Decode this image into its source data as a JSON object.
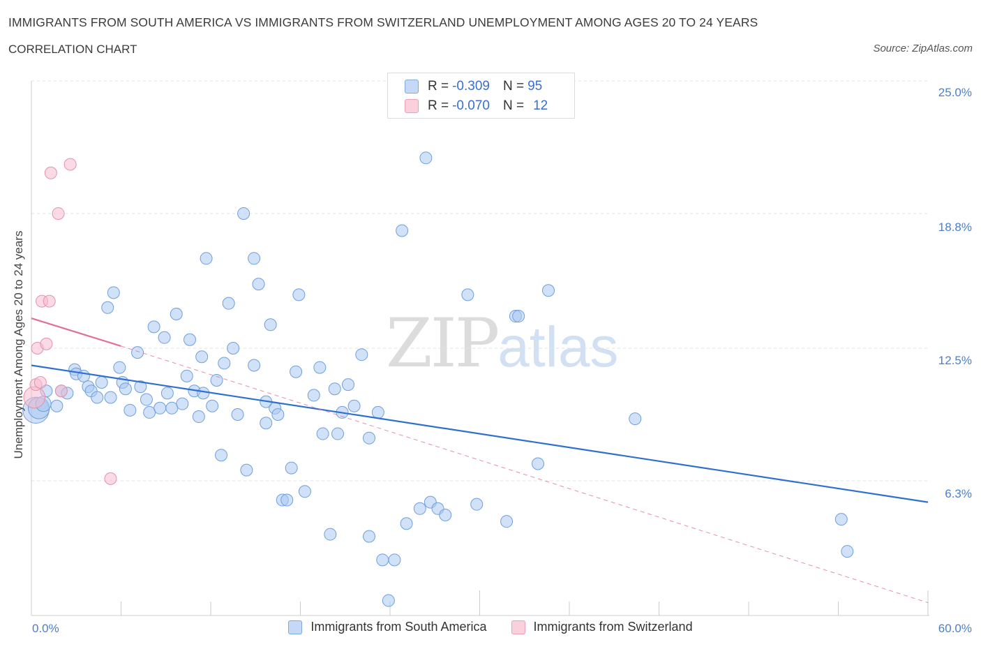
{
  "chart_data": {
    "type": "scatter",
    "title": "IMMIGRANTS FROM SOUTH AMERICA VS IMMIGRANTS FROM SWITZERLAND UNEMPLOYMENT AMONG AGES 20 TO 24 YEARS",
    "subtitle": "CORRELATION CHART",
    "source": "Source: ZipAtlas.com",
    "ylabel": "Unemployment Among Ages 20 to 24 years",
    "xlim": [
      0,
      60
    ],
    "ylim": [
      0,
      25
    ],
    "x_tick_labels": [
      "0.0%",
      "60.0%"
    ],
    "y_ticks": [
      {
        "value": 25.0,
        "label": "25.0%"
      },
      {
        "value": 18.8,
        "label": "18.8%"
      },
      {
        "value": 12.5,
        "label": "12.5%"
      },
      {
        "value": 6.3,
        "label": "6.3%"
      }
    ],
    "legend_stats": [
      {
        "r_label": "R = ",
        "r_value": "-0.309",
        "n_label": "N = ",
        "n_value": "95"
      },
      {
        "r_label": "R = ",
        "r_value": "-0.070",
        "n_label": "N = ",
        "n_value": "12"
      }
    ],
    "watermark": {
      "zip": "ZIP",
      "atlas": "atlas"
    },
    "series": [
      {
        "name": "Immigrants from South America",
        "color": "#a9c8f2",
        "stroke": "#6f9fdc",
        "trend_color": "#2e6fd1",
        "trend": {
          "x0": 0,
          "y0": 11.7,
          "x1": 60,
          "y1": 5.3
        },
        "points": [
          [
            0.3,
            9.6,
            2.2
          ],
          [
            0.5,
            9.7,
            1.8
          ],
          [
            0.8,
            9.9,
            1.3
          ],
          [
            1.0,
            10.5,
            1.0
          ],
          [
            1.7,
            9.8,
            1.0
          ],
          [
            2.0,
            10.5,
            1.0
          ],
          [
            2.4,
            10.4,
            1.0
          ],
          [
            2.9,
            11.5,
            1.0
          ],
          [
            3.0,
            11.3,
            1.0
          ],
          [
            3.5,
            11.2,
            1.0
          ],
          [
            3.8,
            10.7,
            1.0
          ],
          [
            4.0,
            10.5,
            1.0
          ],
          [
            4.4,
            10.2,
            1.0
          ],
          [
            4.7,
            10.9,
            1.0
          ],
          [
            5.1,
            14.4,
            1.0
          ],
          [
            5.3,
            10.2,
            1.0
          ],
          [
            5.5,
            15.1,
            1.0
          ],
          [
            5.9,
            11.6,
            1.0
          ],
          [
            6.1,
            10.9,
            1.0
          ],
          [
            6.3,
            10.6,
            1.0
          ],
          [
            6.6,
            9.6,
            1.0
          ],
          [
            7.1,
            12.3,
            1.0
          ],
          [
            7.3,
            10.7,
            1.0
          ],
          [
            7.7,
            10.1,
            1.0
          ],
          [
            7.9,
            9.5,
            1.0
          ],
          [
            8.2,
            13.5,
            1.0
          ],
          [
            8.6,
            9.7,
            1.0
          ],
          [
            8.9,
            13.0,
            1.0
          ],
          [
            9.1,
            10.4,
            1.0
          ],
          [
            9.4,
            9.7,
            1.0
          ],
          [
            9.7,
            14.1,
            1.0
          ],
          [
            10.1,
            9.9,
            1.0
          ],
          [
            10.4,
            11.2,
            1.0
          ],
          [
            10.6,
            12.9,
            1.0
          ],
          [
            10.9,
            10.5,
            1.0
          ],
          [
            11.2,
            9.3,
            1.0
          ],
          [
            11.5,
            10.4,
            1.0
          ],
          [
            11.7,
            16.7,
            1.0
          ],
          [
            12.1,
            9.8,
            1.0
          ],
          [
            12.4,
            11.0,
            1.0
          ],
          [
            12.7,
            7.5,
            1.0
          ],
          [
            12.9,
            11.8,
            1.0
          ],
          [
            13.2,
            14.6,
            1.0
          ],
          [
            13.5,
            12.5,
            1.0
          ],
          [
            13.8,
            9.4,
            1.0
          ],
          [
            14.2,
            18.8,
            1.0
          ],
          [
            14.4,
            6.8,
            1.0
          ],
          [
            14.9,
            11.7,
            1.0
          ],
          [
            14.9,
            16.7,
            1.0
          ],
          [
            15.2,
            15.5,
            1.0
          ],
          [
            15.7,
            9.0,
            1.0
          ],
          [
            16.0,
            13.6,
            1.0
          ],
          [
            16.3,
            9.7,
            1.0
          ],
          [
            16.5,
            9.4,
            1.0
          ],
          [
            16.8,
            5.4,
            1.0
          ],
          [
            17.1,
            5.4,
            1.0
          ],
          [
            17.4,
            6.9,
            1.0
          ],
          [
            17.7,
            11.4,
            1.0
          ],
          [
            17.9,
            15.0,
            1.0
          ],
          [
            18.3,
            5.8,
            1.0
          ],
          [
            18.9,
            10.3,
            1.0
          ],
          [
            19.3,
            11.6,
            1.0
          ],
          [
            19.5,
            8.5,
            1.0
          ],
          [
            20.0,
            3.8,
            1.0
          ],
          [
            20.3,
            10.6,
            1.0
          ],
          [
            20.5,
            8.5,
            1.0
          ],
          [
            20.8,
            9.5,
            1.0
          ],
          [
            21.2,
            10.8,
            1.0
          ],
          [
            21.6,
            9.8,
            1.0
          ],
          [
            22.1,
            12.2,
            1.0
          ],
          [
            22.6,
            3.7,
            1.0
          ],
          [
            23.2,
            9.5,
            1.0
          ],
          [
            23.5,
            2.6,
            1.0
          ],
          [
            23.9,
            0.7,
            1.0
          ],
          [
            24.3,
            2.6,
            1.0
          ],
          [
            24.8,
            18.0,
            1.0
          ],
          [
            25.1,
            4.3,
            1.0
          ],
          [
            26.0,
            5.0,
            1.0
          ],
          [
            26.4,
            21.4,
            1.0
          ],
          [
            26.7,
            5.3,
            1.0
          ],
          [
            27.2,
            5.0,
            1.0
          ],
          [
            27.7,
            4.7,
            1.0
          ],
          [
            29.2,
            15.0,
            1.0
          ],
          [
            29.8,
            5.2,
            1.0
          ],
          [
            31.8,
            4.4,
            1.0
          ],
          [
            32.4,
            14.0,
            1.0
          ],
          [
            32.6,
            14.0,
            1.0
          ],
          [
            33.9,
            7.1,
            1.0
          ],
          [
            34.6,
            15.2,
            1.0
          ],
          [
            40.4,
            9.2,
            1.0
          ],
          [
            54.2,
            4.5,
            1.0
          ],
          [
            54.6,
            3.0,
            1.0
          ],
          [
            22.6,
            8.3,
            1.0
          ],
          [
            15.7,
            10.0,
            1.0
          ],
          [
            11.4,
            12.1,
            1.0
          ]
        ]
      },
      {
        "name": "Immigrants from Switzerland",
        "color": "#f6bccd",
        "stroke": "#e592aa",
        "trend_color": "#e0709a",
        "trend": {
          "x0": 0,
          "y0": 13.9,
          "x1": 6.0,
          "y1": 12.6
        },
        "trend_dashed": {
          "x0": 6.0,
          "y0": 12.6,
          "x1": 60,
          "y1": 0.6
        },
        "points": [
          [
            0.2,
            10.2,
            1.8
          ],
          [
            0.3,
            10.8,
            1.0
          ],
          [
            0.4,
            12.5,
            1.0
          ],
          [
            0.6,
            10.9,
            1.0
          ],
          [
            0.7,
            14.7,
            1.0
          ],
          [
            1.0,
            12.7,
            1.0
          ],
          [
            1.2,
            14.7,
            1.0
          ],
          [
            1.3,
            20.7,
            1.0
          ],
          [
            1.8,
            18.8,
            1.0
          ],
          [
            2.0,
            10.5,
            1.0
          ],
          [
            2.6,
            21.1,
            1.0
          ],
          [
            5.3,
            6.4,
            1.0
          ]
        ]
      }
    ]
  }
}
